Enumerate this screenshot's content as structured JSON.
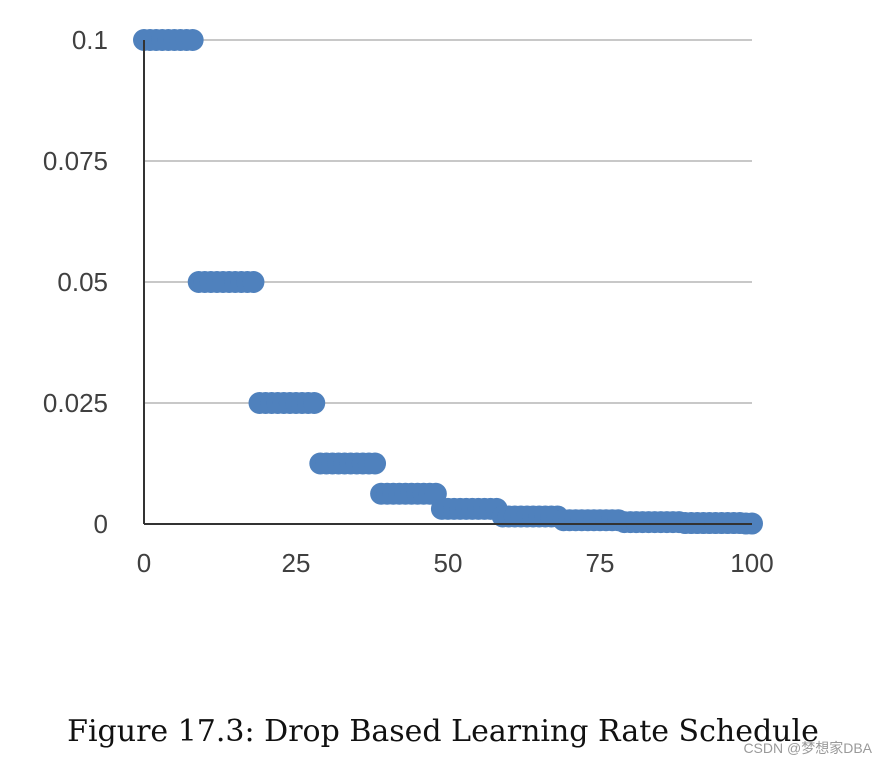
{
  "chart_data": {
    "type": "scatter",
    "title": "",
    "xlabel": "",
    "ylabel": "",
    "xlim": [
      0,
      100
    ],
    "ylim": [
      0,
      0.1
    ],
    "x_ticks": [
      "0",
      "25",
      "50",
      "75",
      "100"
    ],
    "x_tick_values": [
      0,
      25,
      50,
      75,
      100
    ],
    "y_ticks": [
      "0.1",
      "0.075",
      "0.05",
      "0.025",
      "0"
    ],
    "y_tick_values": [
      0.1,
      0.075,
      0.05,
      0.025,
      0
    ],
    "grid": true,
    "legend": "none",
    "series_color": "#4f81bd",
    "grid_color": "#c8c8c8",
    "axis_color": "#333333",
    "series": [
      {
        "name": "",
        "x_start": 0,
        "x_end": 100,
        "step": 1,
        "initial_value": 0.1,
        "drop_factor": 0.5,
        "epochs_per_drop": 10,
        "points_x": [
          0,
          10,
          20,
          30,
          40,
          50,
          60,
          70,
          80,
          90,
          100
        ],
        "points_y": [
          0.1,
          0.05,
          0.025,
          0.0125,
          0.00625,
          0.003125,
          0.0015625,
          0.00078125,
          0.000390625,
          0.0001953125,
          9.76563e-05
        ]
      }
    ]
  },
  "caption": "Figure 17.3: Drop Based Learning Rate Schedule",
  "watermark": "CSDN @梦想家DBA"
}
